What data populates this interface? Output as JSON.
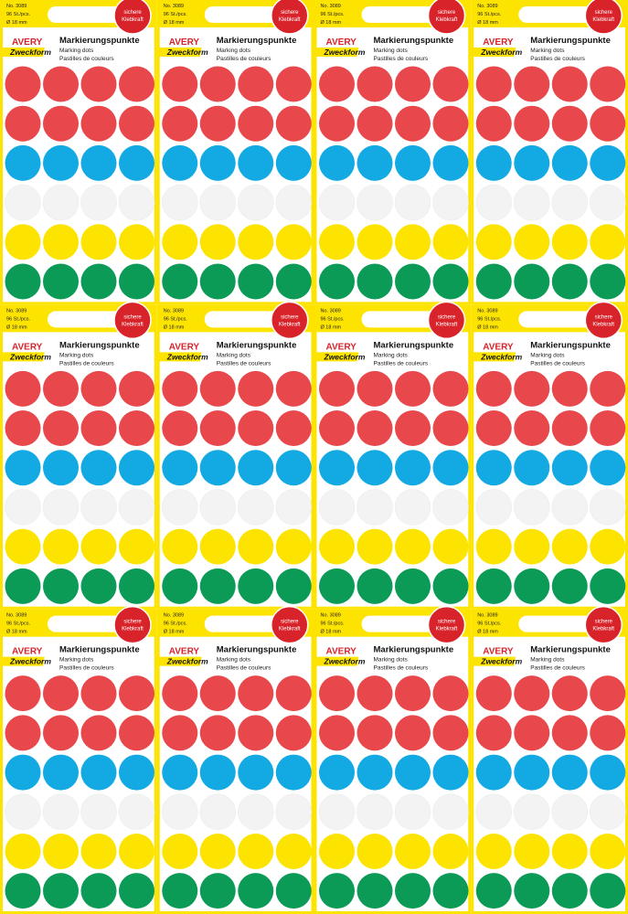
{
  "label": {
    "number": "No. 3089",
    "count": "96 St./pcs.",
    "size": "Ø 18 mm",
    "badge_line1": "sichere",
    "badge_line2": "Klebkraft",
    "brand": "AVERY",
    "brand_sub": "Zweckform",
    "title": "Markierungspunkte",
    "subtitle_en": "Marking dots",
    "subtitle_fr": "Pastilles de couleurs"
  },
  "dot_rows": [
    "#e8474b",
    "#e8474b",
    "#13aae4",
    "#f3f3f3",
    "#fde400",
    "#0b9b57"
  ]
}
